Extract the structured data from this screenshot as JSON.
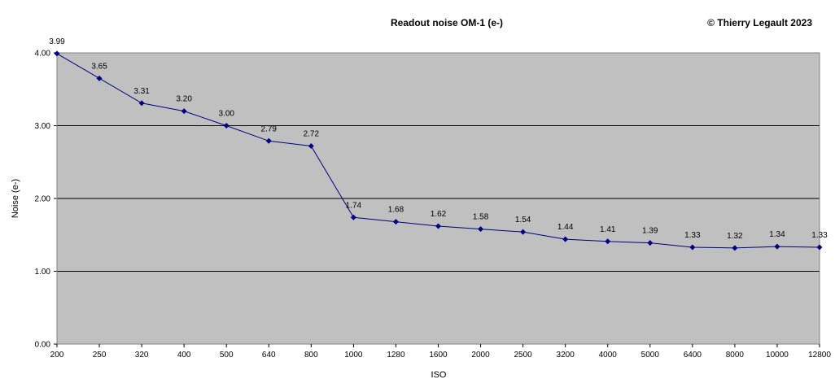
{
  "chart_data": {
    "type": "line",
    "title": "Readout noise OM-1 (e-)",
    "copyright": "© Thierry Legault 2023",
    "xlabel": "ISO",
    "ylabel": "Noise (e-)",
    "categories": [
      "200",
      "250",
      "320",
      "400",
      "500",
      "640",
      "800",
      "1000",
      "1280",
      "1600",
      "2000",
      "2500",
      "3200",
      "4000",
      "5000",
      "6400",
      "8000",
      "10000",
      "12800"
    ],
    "series": [
      {
        "values": [
          3.99,
          3.65,
          3.31,
          3.2,
          3.0,
          2.79,
          2.72,
          1.74,
          1.68,
          1.62,
          1.58,
          1.54,
          1.44,
          1.41,
          1.39,
          1.33,
          1.32,
          1.34,
          1.33
        ],
        "data_labels": [
          "3.99",
          "3.65",
          "3.31",
          "3.20",
          "3.00",
          "2.79",
          "2.72",
          "1.74",
          "1.68",
          "1.62",
          "1.58",
          "1.54",
          "1.44",
          "1.41",
          "1.39",
          "1.33",
          "1.32",
          "1.34",
          "1.33"
        ],
        "color": "#000080"
      }
    ],
    "ylim": [
      0,
      4
    ],
    "yticks": [
      "0.00",
      "1.00",
      "2.00",
      "3.00",
      "4.00"
    ],
    "grid": true,
    "plot_background": "#c0c0c0",
    "legend": "none"
  }
}
